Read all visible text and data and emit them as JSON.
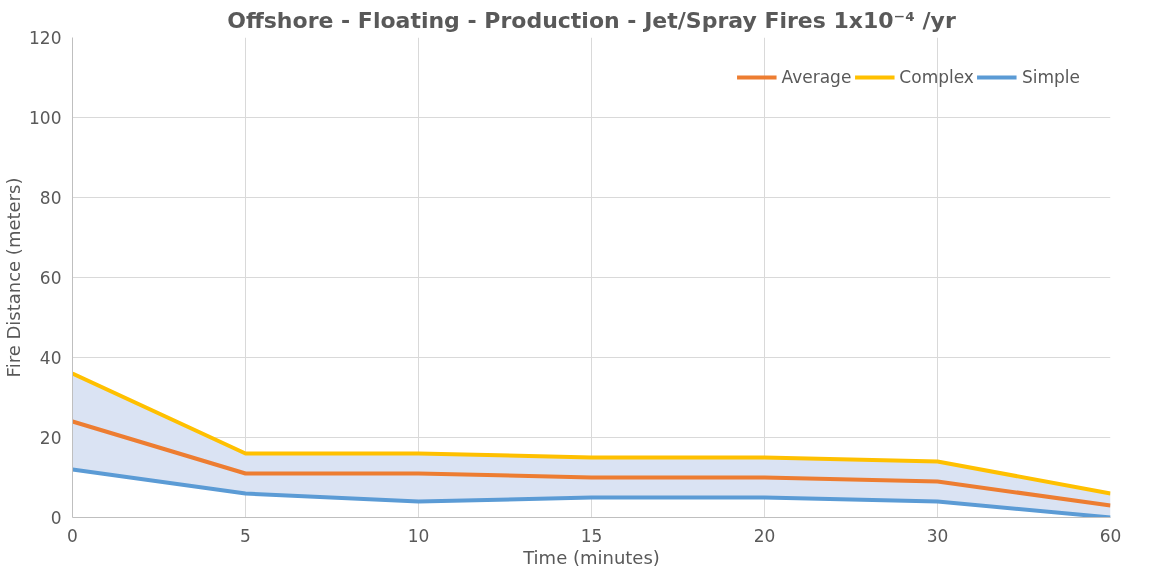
{
  "chart_data": {
    "type": "line",
    "title": "Offshore - Floating - Production - Jet/Spray Fires 1x10⁻⁴ /yr",
    "xlabel": "Time (minutes)",
    "ylabel": "Fire Distance (meters)",
    "categories": [
      "0",
      "5",
      "10",
      "15",
      "20",
      "30",
      "60"
    ],
    "series": [
      {
        "name": "Average",
        "color": "#ed7d31",
        "values": [
          24,
          11,
          11,
          10,
          10,
          9,
          3
        ],
        "lower": [
          12,
          6,
          4,
          5,
          5,
          4,
          0
        ],
        "upper": [
          36,
          16,
          16,
          15,
          15,
          14,
          6
        ]
      },
      {
        "name": "Complex",
        "color": "#ffc000",
        "values": [
          36,
          16,
          16,
          15,
          15,
          14,
          6
        ]
      },
      {
        "name": "Simple",
        "color": "#5b9bd5",
        "values": [
          12,
          6,
          4,
          5,
          5,
          4,
          0
        ]
      }
    ],
    "ylim": [
      0,
      120
    ],
    "yticks": [
      0,
      20,
      40,
      60,
      80,
      100,
      120
    ],
    "grid": true,
    "legend": "top right"
  }
}
